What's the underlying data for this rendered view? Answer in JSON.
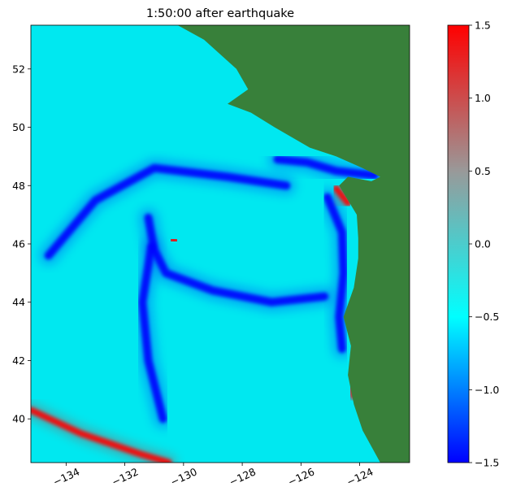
{
  "chart_data": {
    "type": "heatmap",
    "title": "1:50:00 after earthquake",
    "xlabel": "",
    "ylabel": "",
    "xlim": [
      -135.2,
      -122.3
    ],
    "ylim": [
      38.5,
      53.5
    ],
    "x_ticks": [
      {
        "value": -134,
        "label": "−134"
      },
      {
        "value": -132,
        "label": "−132"
      },
      {
        "value": -130,
        "label": "−130"
      },
      {
        "value": -128,
        "label": "−128"
      },
      {
        "value": -126,
        "label": "−126"
      },
      {
        "value": -124,
        "label": "−124"
      }
    ],
    "y_ticks": [
      {
        "value": 40,
        "label": "40"
      },
      {
        "value": 42,
        "label": "42"
      },
      {
        "value": 44,
        "label": "44"
      },
      {
        "value": 46,
        "label": "46"
      },
      {
        "value": 48,
        "label": "48"
      },
      {
        "value": 50,
        "label": "50"
      },
      {
        "value": 52,
        "label": "52"
      }
    ],
    "colorbar": {
      "range": [
        -1.5,
        1.5
      ],
      "ticks": [
        {
          "value": -1.5,
          "label": "−1.5"
        },
        {
          "value": -1.0,
          "label": "−1.0"
        },
        {
          "value": -0.5,
          "label": "−0.5"
        },
        {
          "value": 0.0,
          "label": "0.0"
        },
        {
          "value": 0.5,
          "label": "0.5"
        },
        {
          "value": 1.0,
          "label": "1.0"
        },
        {
          "value": 1.5,
          "label": "1.5"
        }
      ],
      "stops": [
        "#0000ff",
        "#00ffff",
        "#999999",
        "#ff0000"
      ]
    },
    "colors": {
      "ocean": "#00e8f0",
      "land": "#38803a",
      "positive": "#ff0000",
      "negative": "#0000ff"
    },
    "coastline": [
      [
        -122.3,
        38.5
      ],
      [
        -123.3,
        38.5
      ],
      [
        -123.9,
        39.6
      ],
      [
        -124.2,
        40.5
      ],
      [
        -124.4,
        41.5
      ],
      [
        -124.3,
        42.5
      ],
      [
        -124.55,
        43.5
      ],
      [
        -124.2,
        44.5
      ],
      [
        -124.05,
        45.5
      ],
      [
        -124.05,
        46.2
      ],
      [
        -124.1,
        47.0
      ],
      [
        -124.7,
        48.0
      ],
      [
        -124.4,
        48.3
      ],
      [
        -123.6,
        48.15
      ],
      [
        -123.3,
        48.3
      ],
      [
        -123.9,
        48.6
      ],
      [
        -124.8,
        49.0
      ],
      [
        -125.7,
        49.3
      ],
      [
        -126.9,
        50.0
      ],
      [
        -127.7,
        50.5
      ],
      [
        -128.5,
        50.8
      ],
      [
        -127.8,
        51.3
      ],
      [
        -128.2,
        52.0
      ],
      [
        -129.3,
        53.0
      ],
      [
        -130.2,
        53.5
      ],
      [
        -122.3,
        53.5
      ]
    ],
    "wave_features": [
      {
        "name": "source-trough",
        "sign": -1,
        "path": [
          [
            -131.2,
            46.9
          ],
          [
            -131.0,
            45.8
          ],
          [
            -130.6,
            45.0
          ],
          [
            -129.0,
            44.4
          ],
          [
            -127.0,
            44.0
          ],
          [
            -125.2,
            44.2
          ]
        ]
      },
      {
        "name": "coastal-trough",
        "sign": -1,
        "path": [
          [
            -125.1,
            47.6
          ],
          [
            -124.6,
            46.4
          ],
          [
            -124.55,
            45.0
          ],
          [
            -124.7,
            43.5
          ],
          [
            -124.6,
            42.4
          ]
        ]
      },
      {
        "name": "north-trough",
        "sign": -1,
        "path": [
          [
            -126.8,
            48.9
          ],
          [
            -125.8,
            48.8
          ],
          [
            -124.8,
            48.5
          ],
          [
            -123.5,
            48.35
          ]
        ]
      },
      {
        "name": "outer-trough",
        "sign": -1,
        "path": [
          [
            -126.5,
            48.0
          ],
          [
            -128.5,
            48.3
          ],
          [
            -131.0,
            48.6
          ],
          [
            -133.0,
            47.5
          ],
          [
            -134.6,
            45.6
          ]
        ]
      },
      {
        "name": "south-trough",
        "sign": -1,
        "path": [
          [
            -131.1,
            45.9
          ],
          [
            -131.4,
            44.0
          ],
          [
            -131.2,
            42.0
          ],
          [
            -130.7,
            40.0
          ]
        ]
      },
      {
        "name": "source-crest",
        "sign": 1,
        "path": [
          [
            -130.4,
            46.15
          ],
          [
            -130.25,
            46.1
          ]
        ]
      },
      {
        "name": "strait-crest",
        "sign": 1,
        "path": [
          [
            -123.3,
            48.35
          ],
          [
            -122.7,
            48.35
          ]
        ]
      },
      {
        "name": "shelf-crest",
        "sign": 1,
        "path": [
          [
            -124.8,
            47.9
          ],
          [
            -124.4,
            47.4
          ]
        ]
      },
      {
        "name": "california-crest",
        "sign": 1,
        "path": [
          [
            -124.3,
            41.6
          ],
          [
            -124.2,
            40.8
          ]
        ]
      },
      {
        "name": "southwest-crest",
        "sign": 1,
        "path": [
          [
            -135.2,
            40.3
          ],
          [
            -133.5,
            39.5
          ],
          [
            -131.5,
            38.8
          ],
          [
            -130.5,
            38.5
          ]
        ]
      }
    ]
  }
}
